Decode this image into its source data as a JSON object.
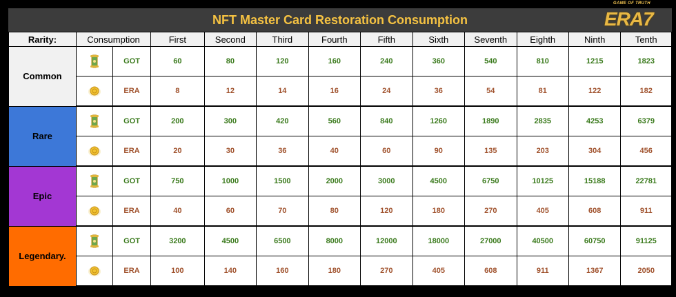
{
  "title": "NFT Master Card Restoration Consumption",
  "logo": {
    "tagline": "GAME OF TRUTH",
    "brand": "ERA7"
  },
  "headers": {
    "rarity": "Rarity:",
    "consumption": "Consumption",
    "levels": [
      "First",
      "Second",
      "Third",
      "Fourth",
      "Fifth",
      "Sixth",
      "Seventh",
      "Eighth",
      "Ninth",
      "Tenth"
    ]
  },
  "colors": {
    "common": "#f1f1f1",
    "rare": "#3d78d8",
    "epic": "#a337d3",
    "legendary": "#ff6c00",
    "got_text": "#3a7a1c",
    "era_text": "#a0522d",
    "title_text": "#f5c242"
  },
  "icons": {
    "got": "scroll-icon",
    "era": "coin-icon"
  },
  "rows": [
    {
      "rarity": "Common",
      "got_label": "GOT",
      "got": [
        "60",
        "80",
        "120",
        "160",
        "240",
        "360",
        "540",
        "810",
        "1215",
        "1823"
      ],
      "era_label": "ERA",
      "era": [
        "8",
        "12",
        "14",
        "16",
        "24",
        "36",
        "54",
        "81",
        "122",
        "182"
      ]
    },
    {
      "rarity": "Rare",
      "got_label": "GOT",
      "got": [
        "200",
        "300",
        "420",
        "560",
        "840",
        "1260",
        "1890",
        "2835",
        "4253",
        "6379"
      ],
      "era_label": "ERA",
      "era": [
        "20",
        "30",
        "36",
        "40",
        "60",
        "90",
        "135",
        "203",
        "304",
        "456"
      ]
    },
    {
      "rarity": "Epic",
      "got_label": "GOT",
      "got": [
        "750",
        "1000",
        "1500",
        "2000",
        "3000",
        "4500",
        "6750",
        "10125",
        "15188",
        "22781"
      ],
      "era_label": "ERA",
      "era": [
        "40",
        "60",
        "70",
        "80",
        "120",
        "180",
        "270",
        "405",
        "608",
        "911"
      ]
    },
    {
      "rarity": "Legendary.",
      "got_label": "GOT",
      "got": [
        "3200",
        "4500",
        "6500",
        "8000",
        "12000",
        "18000",
        "27000",
        "40500",
        "60750",
        "91125"
      ],
      "era_label": "ERA",
      "era": [
        "100",
        "140",
        "160",
        "180",
        "270",
        "405",
        "608",
        "911",
        "1367",
        "2050"
      ]
    }
  ]
}
